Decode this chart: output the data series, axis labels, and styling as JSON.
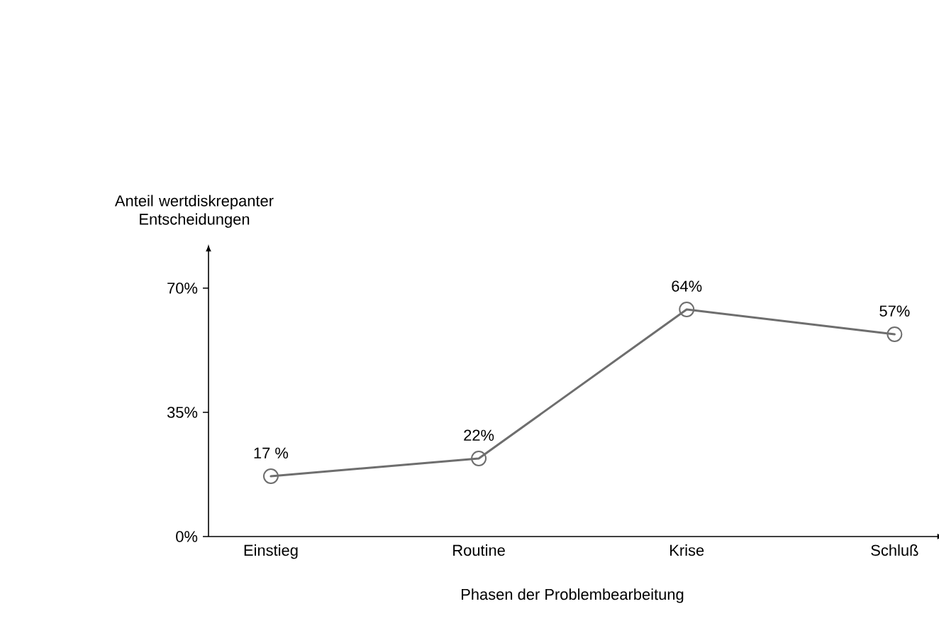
{
  "chart_data": {
    "type": "line",
    "ylabel": "Anteil wertdiskrepanter Entscheidungen",
    "xlabel": "Phasen der Problembearbeitung",
    "categories": [
      "Einstieg",
      "Routine",
      "Krise",
      "Schluß"
    ],
    "series": [
      {
        "color": "#6e6e6e",
        "values": [
          17,
          22,
          64,
          57
        ],
        "value_labels": [
          "17 %",
          "22%",
          "64%",
          "57%"
        ]
      }
    ],
    "ylim": [
      0,
      80
    ],
    "yticks": [
      {
        "value": 0,
        "label": "0%"
      },
      {
        "value": 35,
        "label": "35%"
      },
      {
        "value": 70,
        "label": "70%"
      }
    ],
    "marker": "circle",
    "line_style": "solid"
  }
}
